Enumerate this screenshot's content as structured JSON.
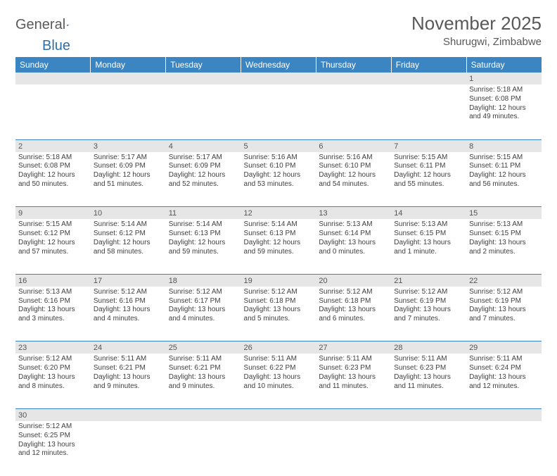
{
  "logo": {
    "part1": "General",
    "part2": "Blue"
  },
  "title": "November 2025",
  "location": "Shurugwi, Zimbabwe",
  "colors": {
    "header_bg": "#3b85c3",
    "header_text": "#ffffff",
    "daynum_bg": "#e6e6e6",
    "cell_border": "#3b85c3",
    "text": "#404040",
    "title_text": "#595959"
  },
  "day_headers": [
    "Sunday",
    "Monday",
    "Tuesday",
    "Wednesday",
    "Thursday",
    "Friday",
    "Saturday"
  ],
  "weeks": [
    {
      "nums": [
        "",
        "",
        "",
        "",
        "",
        "",
        "1"
      ],
      "cells": [
        null,
        null,
        null,
        null,
        null,
        null,
        {
          "sunrise": "5:18 AM",
          "sunset": "6:08 PM",
          "daylight1": "Daylight: 12 hours",
          "daylight2": "and 49 minutes."
        }
      ]
    },
    {
      "nums": [
        "2",
        "3",
        "4",
        "5",
        "6",
        "7",
        "8"
      ],
      "cells": [
        {
          "sunrise": "5:18 AM",
          "sunset": "6:08 PM",
          "daylight1": "Daylight: 12 hours",
          "daylight2": "and 50 minutes."
        },
        {
          "sunrise": "5:17 AM",
          "sunset": "6:09 PM",
          "daylight1": "Daylight: 12 hours",
          "daylight2": "and 51 minutes."
        },
        {
          "sunrise": "5:17 AM",
          "sunset": "6:09 PM",
          "daylight1": "Daylight: 12 hours",
          "daylight2": "and 52 minutes."
        },
        {
          "sunrise": "5:16 AM",
          "sunset": "6:10 PM",
          "daylight1": "Daylight: 12 hours",
          "daylight2": "and 53 minutes."
        },
        {
          "sunrise": "5:16 AM",
          "sunset": "6:10 PM",
          "daylight1": "Daylight: 12 hours",
          "daylight2": "and 54 minutes."
        },
        {
          "sunrise": "5:15 AM",
          "sunset": "6:11 PM",
          "daylight1": "Daylight: 12 hours",
          "daylight2": "and 55 minutes."
        },
        {
          "sunrise": "5:15 AM",
          "sunset": "6:11 PM",
          "daylight1": "Daylight: 12 hours",
          "daylight2": "and 56 minutes."
        }
      ]
    },
    {
      "nums": [
        "9",
        "10",
        "11",
        "12",
        "13",
        "14",
        "15"
      ],
      "cells": [
        {
          "sunrise": "5:15 AM",
          "sunset": "6:12 PM",
          "daylight1": "Daylight: 12 hours",
          "daylight2": "and 57 minutes."
        },
        {
          "sunrise": "5:14 AM",
          "sunset": "6:12 PM",
          "daylight1": "Daylight: 12 hours",
          "daylight2": "and 58 minutes."
        },
        {
          "sunrise": "5:14 AM",
          "sunset": "6:13 PM",
          "daylight1": "Daylight: 12 hours",
          "daylight2": "and 59 minutes."
        },
        {
          "sunrise": "5:14 AM",
          "sunset": "6:13 PM",
          "daylight1": "Daylight: 12 hours",
          "daylight2": "and 59 minutes."
        },
        {
          "sunrise": "5:13 AM",
          "sunset": "6:14 PM",
          "daylight1": "Daylight: 13 hours",
          "daylight2": "and 0 minutes."
        },
        {
          "sunrise": "5:13 AM",
          "sunset": "6:15 PM",
          "daylight1": "Daylight: 13 hours",
          "daylight2": "and 1 minute."
        },
        {
          "sunrise": "5:13 AM",
          "sunset": "6:15 PM",
          "daylight1": "Daylight: 13 hours",
          "daylight2": "and 2 minutes."
        }
      ]
    },
    {
      "nums": [
        "16",
        "17",
        "18",
        "19",
        "20",
        "21",
        "22"
      ],
      "cells": [
        {
          "sunrise": "5:13 AM",
          "sunset": "6:16 PM",
          "daylight1": "Daylight: 13 hours",
          "daylight2": "and 3 minutes."
        },
        {
          "sunrise": "5:12 AM",
          "sunset": "6:16 PM",
          "daylight1": "Daylight: 13 hours",
          "daylight2": "and 4 minutes."
        },
        {
          "sunrise": "5:12 AM",
          "sunset": "6:17 PM",
          "daylight1": "Daylight: 13 hours",
          "daylight2": "and 4 minutes."
        },
        {
          "sunrise": "5:12 AM",
          "sunset": "6:18 PM",
          "daylight1": "Daylight: 13 hours",
          "daylight2": "and 5 minutes."
        },
        {
          "sunrise": "5:12 AM",
          "sunset": "6:18 PM",
          "daylight1": "Daylight: 13 hours",
          "daylight2": "and 6 minutes."
        },
        {
          "sunrise": "5:12 AM",
          "sunset": "6:19 PM",
          "daylight1": "Daylight: 13 hours",
          "daylight2": "and 7 minutes."
        },
        {
          "sunrise": "5:12 AM",
          "sunset": "6:19 PM",
          "daylight1": "Daylight: 13 hours",
          "daylight2": "and 7 minutes."
        }
      ]
    },
    {
      "nums": [
        "23",
        "24",
        "25",
        "26",
        "27",
        "28",
        "29"
      ],
      "cells": [
        {
          "sunrise": "5:12 AM",
          "sunset": "6:20 PM",
          "daylight1": "Daylight: 13 hours",
          "daylight2": "and 8 minutes."
        },
        {
          "sunrise": "5:11 AM",
          "sunset": "6:21 PM",
          "daylight1": "Daylight: 13 hours",
          "daylight2": "and 9 minutes."
        },
        {
          "sunrise": "5:11 AM",
          "sunset": "6:21 PM",
          "daylight1": "Daylight: 13 hours",
          "daylight2": "and 9 minutes."
        },
        {
          "sunrise": "5:11 AM",
          "sunset": "6:22 PM",
          "daylight1": "Daylight: 13 hours",
          "daylight2": "and 10 minutes."
        },
        {
          "sunrise": "5:11 AM",
          "sunset": "6:23 PM",
          "daylight1": "Daylight: 13 hours",
          "daylight2": "and 11 minutes."
        },
        {
          "sunrise": "5:11 AM",
          "sunset": "6:23 PM",
          "daylight1": "Daylight: 13 hours",
          "daylight2": "and 11 minutes."
        },
        {
          "sunrise": "5:11 AM",
          "sunset": "6:24 PM",
          "daylight1": "Daylight: 13 hours",
          "daylight2": "and 12 minutes."
        }
      ]
    },
    {
      "nums": [
        "30",
        "",
        "",
        "",
        "",
        "",
        ""
      ],
      "cells": [
        {
          "sunrise": "5:12 AM",
          "sunset": "6:25 PM",
          "daylight1": "Daylight: 13 hours",
          "daylight2": "and 12 minutes."
        },
        null,
        null,
        null,
        null,
        null,
        null
      ]
    }
  ],
  "labels": {
    "sunrise_prefix": "Sunrise: ",
    "sunset_prefix": "Sunset: "
  }
}
